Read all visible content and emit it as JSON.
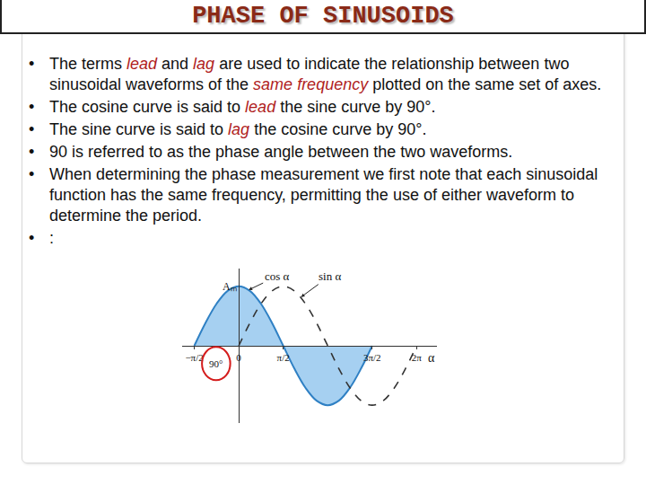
{
  "title": "PHASE OF SINUSOIDS",
  "bullets": [
    [
      {
        "text": "The terms "
      },
      {
        "text": "lead",
        "em": true
      },
      {
        "text": " and "
      },
      {
        "text": "lag",
        "em": true
      },
      {
        "text": " are used to indicate the relationship between two sinusoidal waveforms of the "
      },
      {
        "text": "same frequency",
        "em": true
      },
      {
        "text": " plotted on the same set of axes."
      }
    ],
    [
      {
        "text": "The cosine curve is said to "
      },
      {
        "text": "lead",
        "em": true
      },
      {
        "text": " the sine curve by 90°."
      }
    ],
    [
      {
        "text": "The sine curve is said to "
      },
      {
        "text": "lag",
        "em": true
      },
      {
        "text": " the cosine curve by 90°."
      }
    ],
    [
      {
        "text": "90 is referred to as the phase angle between the two waveforms."
      }
    ],
    [
      {
        "text": "When determining the phase measurement we first note that each sinusoidal function has the same frequency, permitting the use of either waveform to determine the period."
      }
    ],
    [
      {
        "text": ":"
      }
    ]
  ],
  "chart_data": {
    "type": "line",
    "series": [
      {
        "name": "cos α",
        "color": "#2f80c4",
        "line_style": "solid",
        "x": [
          -1.571,
          -1.178,
          -0.785,
          -0.393,
          0,
          0.393,
          0.785,
          1.178,
          1.571,
          1.963,
          2.356,
          2.749,
          3.142,
          3.534,
          3.927,
          4.32,
          4.712
        ],
        "values": [
          0,
          0.383,
          0.707,
          0.924,
          1,
          0.924,
          0.707,
          0.383,
          0,
          -0.383,
          -0.707,
          -0.924,
          -1,
          -0.924,
          -0.707,
          -0.383,
          0
        ]
      },
      {
        "name": "sin α",
        "color": "#333333",
        "line_style": "dashed",
        "x": [
          0,
          0.393,
          0.785,
          1.178,
          1.571,
          1.963,
          2.356,
          2.749,
          3.142,
          3.534,
          3.927,
          4.32,
          4.712,
          5.105,
          5.498,
          5.89,
          6.283
        ],
        "values": [
          0,
          0.383,
          0.707,
          0.924,
          1,
          0.924,
          0.707,
          0.383,
          0,
          -0.383,
          -0.707,
          -0.924,
          -1,
          -0.924,
          -0.707,
          -0.383,
          0
        ]
      }
    ],
    "xlim": [
      -2,
      7
    ],
    "ylim": [
      -1.3,
      1.3
    ],
    "xticks": [
      {
        "value": -1.571,
        "label": "−π/2"
      },
      0,
      {
        "value": 1.571,
        "label": "π/2"
      },
      {
        "value": 4.712,
        "label": "3π/2"
      },
      {
        "value": 6.283,
        "label": "2π"
      }
    ],
    "yticks": [
      {
        "value": 1,
        "label": "Aₘ"
      }
    ],
    "axis_label": "α",
    "phase_label": "90°",
    "grid": false
  }
}
